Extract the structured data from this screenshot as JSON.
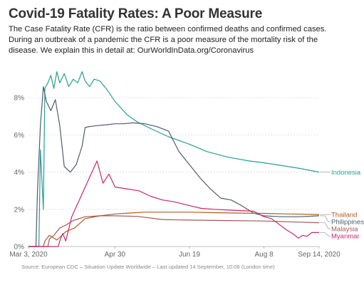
{
  "header": {
    "title": "Covid-19 Fatality Rates: A Poor Measure",
    "subtitle_lines": [
      "The Case Fatality Rate (CFR) is the ratio between confirmed deaths and confirmed cases.",
      "During an outbreak of a pandemic the CFR is a poor measure of the mortality risk of the",
      "disease. We explain this in detail at: OurWorldInData.org/Coronavirus"
    ]
  },
  "footer": {
    "source": "Source: European CDC – Situation Update Worldwide – Last updated 14 September, 10:06 (London time)"
  },
  "chart_data": {
    "type": "line",
    "title": "Covid-19 Fatality Rates: A Poor Measure",
    "xlabel": "",
    "ylabel": "",
    "x_range": [
      "2020-03-03",
      "2020-09-14"
    ],
    "x_ticks": [
      {
        "date": "2020-03-03",
        "label": "Mar 3, 2020"
      },
      {
        "date": "2020-04-30",
        "label": "Apr 30"
      },
      {
        "date": "2020-06-19",
        "label": "Jun 19"
      },
      {
        "date": "2020-08-08",
        "label": "Aug 8"
      },
      {
        "date": "2020-09-14",
        "label": "Sep 14, 2020"
      }
    ],
    "ylim": [
      0,
      9.5
    ],
    "y_ticks": [
      {
        "value": 0,
        "label": "0%"
      },
      {
        "value": 2,
        "label": "2%"
      },
      {
        "value": 4,
        "label": "4%"
      },
      {
        "value": 6,
        "label": "6%"
      },
      {
        "value": 8,
        "label": "8%"
      }
    ],
    "grid": true,
    "legend": "line-end labels",
    "series": [
      {
        "name": "Indonesia",
        "color": "#2a9d95",
        "points": [
          [
            "2020-03-03",
            0
          ],
          [
            "2020-03-10",
            0
          ],
          [
            "2020-03-11",
            5.2
          ],
          [
            "2020-03-13",
            2.0
          ],
          [
            "2020-03-14",
            8.5
          ],
          [
            "2020-03-16",
            8.8
          ],
          [
            "2020-03-18",
            9.2
          ],
          [
            "2020-03-20",
            8.5
          ],
          [
            "2020-03-22",
            9.4
          ],
          [
            "2020-03-24",
            8.8
          ],
          [
            "2020-03-27",
            9.3
          ],
          [
            "2020-03-30",
            8.6
          ],
          [
            "2020-04-02",
            9.0
          ],
          [
            "2020-04-05",
            8.8
          ],
          [
            "2020-04-08",
            9.4
          ],
          [
            "2020-04-10",
            8.9
          ],
          [
            "2020-04-13",
            8.6
          ],
          [
            "2020-04-16",
            9.0
          ],
          [
            "2020-04-20",
            8.9
          ],
          [
            "2020-04-25",
            8.4
          ],
          [
            "2020-04-30",
            7.8
          ],
          [
            "2020-05-08",
            7.1
          ],
          [
            "2020-05-15",
            6.7
          ],
          [
            "2020-05-25",
            6.3
          ],
          [
            "2020-06-05",
            5.9
          ],
          [
            "2020-06-19",
            5.5
          ],
          [
            "2020-07-01",
            5.1
          ],
          [
            "2020-07-15",
            4.8
          ],
          [
            "2020-07-29",
            4.6
          ],
          [
            "2020-08-08",
            4.5
          ],
          [
            "2020-08-20",
            4.35
          ],
          [
            "2020-09-01",
            4.2
          ],
          [
            "2020-09-14",
            4.0
          ]
        ]
      },
      {
        "name": "Philippines",
        "color": "#4e5d6e",
        "points": [
          [
            "2020-03-03",
            0
          ],
          [
            "2020-03-08",
            0
          ],
          [
            "2020-03-09",
            3.0
          ],
          [
            "2020-03-11",
            6.5
          ],
          [
            "2020-03-13",
            8.6
          ],
          [
            "2020-03-15",
            7.8
          ],
          [
            "2020-03-18",
            7.3
          ],
          [
            "2020-03-21",
            7.9
          ],
          [
            "2020-03-24",
            6.5
          ],
          [
            "2020-03-27",
            4.3
          ],
          [
            "2020-03-31",
            4.0
          ],
          [
            "2020-04-04",
            4.4
          ],
          [
            "2020-04-08",
            5.4
          ],
          [
            "2020-04-10",
            6.4
          ],
          [
            "2020-04-13",
            6.45
          ],
          [
            "2020-04-18",
            6.5
          ],
          [
            "2020-04-25",
            6.55
          ],
          [
            "2020-04-30",
            6.6
          ],
          [
            "2020-05-06",
            6.6
          ],
          [
            "2020-05-12",
            6.65
          ],
          [
            "2020-05-20",
            6.6
          ],
          [
            "2020-05-28",
            6.45
          ],
          [
            "2020-06-05",
            6.2
          ],
          [
            "2020-06-12",
            5.1
          ],
          [
            "2020-06-19",
            4.4
          ],
          [
            "2020-06-26",
            3.7
          ],
          [
            "2020-07-03",
            3.1
          ],
          [
            "2020-07-10",
            2.6
          ],
          [
            "2020-07-17",
            2.5
          ],
          [
            "2020-07-24",
            2.2
          ],
          [
            "2020-08-01",
            1.8
          ],
          [
            "2020-08-08",
            1.65
          ],
          [
            "2020-08-20",
            1.6
          ],
          [
            "2020-09-01",
            1.6
          ],
          [
            "2020-09-14",
            1.65
          ]
        ]
      },
      {
        "name": "Thailand",
        "color": "#b35c1e",
        "points": [
          [
            "2020-03-03",
            0
          ],
          [
            "2020-03-13",
            0
          ],
          [
            "2020-03-14",
            0.3
          ],
          [
            "2020-03-17",
            0.6
          ],
          [
            "2020-03-22",
            0.35
          ],
          [
            "2020-03-28",
            0.8
          ],
          [
            "2020-04-03",
            1.0
          ],
          [
            "2020-04-10",
            1.5
          ],
          [
            "2020-04-20",
            1.65
          ],
          [
            "2020-04-30",
            1.75
          ],
          [
            "2020-05-10",
            1.8
          ],
          [
            "2020-05-20",
            1.85
          ],
          [
            "2020-06-01",
            1.85
          ],
          [
            "2020-06-19",
            1.85
          ],
          [
            "2020-07-05",
            1.82
          ],
          [
            "2020-07-20",
            1.8
          ],
          [
            "2020-08-08",
            1.78
          ],
          [
            "2020-08-25",
            1.75
          ],
          [
            "2020-09-14",
            1.72
          ]
        ]
      },
      {
        "name": "Malaysia",
        "color": "#a45a52",
        "points": [
          [
            "2020-03-03",
            0
          ],
          [
            "2020-03-16",
            0
          ],
          [
            "2020-03-17",
            0.4
          ],
          [
            "2020-03-20",
            0.6
          ],
          [
            "2020-03-24",
            1.0
          ],
          [
            "2020-03-28",
            1.15
          ],
          [
            "2020-04-02",
            1.4
          ],
          [
            "2020-04-10",
            1.6
          ],
          [
            "2020-04-20",
            1.65
          ],
          [
            "2020-04-30",
            1.65
          ],
          [
            "2020-05-15",
            1.62
          ],
          [
            "2020-06-01",
            1.45
          ],
          [
            "2020-06-19",
            1.42
          ],
          [
            "2020-07-10",
            1.4
          ],
          [
            "2020-08-08",
            1.37
          ],
          [
            "2020-08-25",
            1.33
          ],
          [
            "2020-09-14",
            1.28
          ]
        ]
      },
      {
        "name": "Myanmar",
        "color": "#c62a6f",
        "points": [
          [
            "2020-03-03",
            0
          ],
          [
            "2020-03-23",
            0
          ],
          [
            "2020-03-24",
            0.3
          ],
          [
            "2020-03-26",
            0.7
          ],
          [
            "2020-03-28",
            0.3
          ],
          [
            "2020-04-01",
            1.6
          ],
          [
            "2020-04-18",
            4.6
          ],
          [
            "2020-04-22",
            3.4
          ],
          [
            "2020-04-26",
            3.9
          ],
          [
            "2020-04-30",
            3.2
          ],
          [
            "2020-05-08",
            3.1
          ],
          [
            "2020-05-16",
            3.0
          ],
          [
            "2020-05-24",
            2.7
          ],
          [
            "2020-06-01",
            2.5
          ],
          [
            "2020-06-09",
            2.4
          ],
          [
            "2020-06-19",
            2.2
          ],
          [
            "2020-06-27",
            2.05
          ],
          [
            "2020-07-06",
            2.0
          ],
          [
            "2020-07-18",
            1.95
          ],
          [
            "2020-08-01",
            1.9
          ],
          [
            "2020-08-08",
            1.6
          ],
          [
            "2020-08-13",
            1.5
          ],
          [
            "2020-08-18",
            1.2
          ],
          [
            "2020-08-23",
            0.9
          ],
          [
            "2020-08-28",
            0.65
          ],
          [
            "2020-08-31",
            0.45
          ],
          [
            "2020-09-03",
            0.6
          ],
          [
            "2020-09-06",
            0.55
          ],
          [
            "2020-09-09",
            0.75
          ],
          [
            "2020-09-14",
            0.75
          ]
        ]
      }
    ]
  }
}
